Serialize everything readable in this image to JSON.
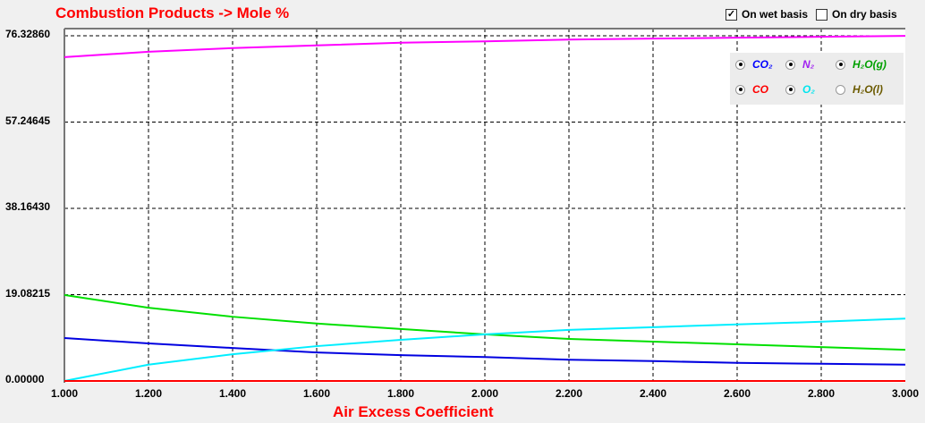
{
  "options": {
    "wet_label": "On wet basis",
    "wet_checked": true,
    "dry_label": "On dry basis",
    "dry_checked": false
  },
  "legend": [
    {
      "label": "CO₂",
      "color": "#0000ff",
      "selected": true
    },
    {
      "label": "N₂",
      "color": "#a020f0",
      "selected": true
    },
    {
      "label": "H₂O(g)",
      "color": "#00a000",
      "selected": true
    },
    {
      "label": "CO",
      "color": "#ff0000",
      "selected": true
    },
    {
      "label": "O₂",
      "color": "#00e5ee",
      "selected": true
    },
    {
      "label": "H₂O(l)",
      "color": "#6b5a00",
      "selected": false
    }
  ],
  "chart_data": {
    "type": "line",
    "title": "Combustion Products -> Mole %",
    "xlabel": "Air Excess Coefficient",
    "ylabel": "",
    "xlim": [
      1.0,
      3.0
    ],
    "ylim": [
      0,
      76.3286
    ],
    "xticks": [
      "1.000",
      "1.200",
      "1.400",
      "1.600",
      "1.800",
      "2.000",
      "2.200",
      "2.400",
      "2.600",
      "2.800",
      "3.000"
    ],
    "yticks": [
      "0.00000",
      "19.08215",
      "38.16430",
      "57.24645",
      "76.32860"
    ],
    "x": [
      1.0,
      1.2,
      1.4,
      1.6,
      1.8,
      2.0,
      2.2,
      2.4,
      2.6,
      2.8,
      3.0
    ],
    "series": [
      {
        "name": "N2",
        "color": "#ff00ff",
        "values": [
          71.6,
          72.8,
          73.6,
          74.2,
          74.8,
          75.1,
          75.5,
          75.7,
          75.9,
          76.1,
          76.3
        ]
      },
      {
        "name": "H2O(g)",
        "color": "#00e000",
        "values": [
          19.0,
          16.2,
          14.2,
          12.7,
          11.5,
          10.3,
          9.3,
          8.7,
          8.1,
          7.5,
          6.9
        ]
      },
      {
        "name": "CO2",
        "color": "#0000e0",
        "values": [
          9.5,
          8.3,
          7.3,
          6.3,
          5.7,
          5.3,
          4.7,
          4.4,
          4.0,
          3.8,
          3.6
        ]
      },
      {
        "name": "O2",
        "color": "#00eeff",
        "values": [
          0,
          3.6,
          5.9,
          7.7,
          9.1,
          10.3,
          11.3,
          11.9,
          12.5,
          13.1,
          13.8
        ]
      },
      {
        "name": "CO",
        "color": "#ff0000",
        "values": [
          0,
          0,
          0,
          0,
          0,
          0,
          0,
          0,
          0,
          0,
          0
        ]
      }
    ]
  }
}
